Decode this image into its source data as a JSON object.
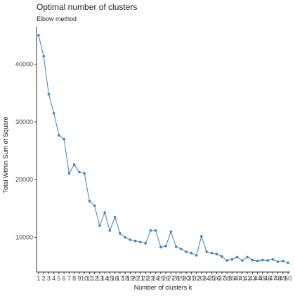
{
  "chart_data": {
    "type": "line",
    "title": "Optimal number of clusters",
    "subtitle": "Elbow method",
    "xlabel": "Number of clusters k",
    "ylabel": "Total Within Sum of Square",
    "x": [
      1,
      2,
      3,
      4,
      5,
      6,
      7,
      8,
      9,
      10,
      11,
      12,
      13,
      14,
      15,
      16,
      17,
      18,
      19,
      20,
      21,
      22,
      23,
      24,
      25,
      26,
      27,
      28,
      29,
      30,
      31,
      32,
      33,
      34,
      35,
      36,
      37,
      38,
      39,
      40,
      41,
      42,
      43,
      44,
      45,
      46,
      47,
      48,
      49,
      50
    ],
    "x_tick_labels": [
      "1",
      "2",
      "3",
      "4",
      "5",
      "6",
      "7",
      "8",
      "9",
      "10",
      "11",
      "12",
      "13",
      "14",
      "15",
      "16",
      "17",
      "18",
      "19",
      "20",
      "21",
      "22",
      "23",
      "24",
      "25",
      "26",
      "27",
      "28",
      "29",
      "30",
      "31",
      "32",
      "33",
      "34",
      "35",
      "36",
      "37",
      "38",
      "39",
      "40",
      "41",
      "42",
      "43",
      "44",
      "45",
      "46",
      "47",
      "48",
      "49",
      "50"
    ],
    "series": [
      {
        "values": [
          45000,
          41400,
          34800,
          31500,
          27700,
          27000,
          21100,
          22600,
          21300,
          21100,
          16300,
          15500,
          12000,
          14300,
          11200,
          13500,
          10700,
          10000,
          9600,
          9400,
          9200,
          9000,
          11200,
          11200,
          8300,
          8500,
          11000,
          8400,
          8000,
          7500,
          7300,
          6900,
          10200,
          7500,
          7300,
          7100,
          6700,
          6000,
          6200,
          6600,
          6000,
          6600,
          6100,
          5900,
          6100,
          6000,
          6200,
          5800,
          5900,
          5600
        ]
      }
    ],
    "ylim": [
      4000,
      46500
    ],
    "y_ticks": [
      10000,
      20000,
      30000,
      40000
    ],
    "y_tick_labels": [
      "10000",
      "20000",
      "30000",
      "40000"
    ],
    "grid": false,
    "line_color": "#4682B4",
    "point_color": "#4682B4"
  }
}
